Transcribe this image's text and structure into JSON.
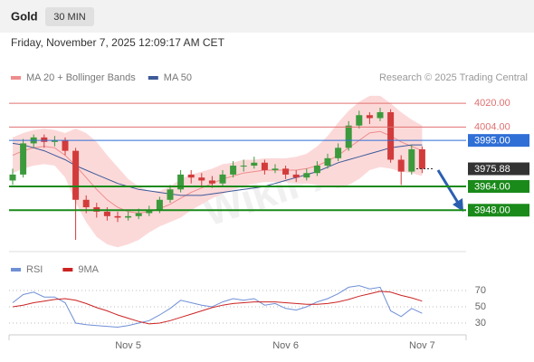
{
  "chart_data": {
    "type": "candlestick",
    "title": "Gold",
    "timeframe": "30 MIN",
    "subtitle": "Friday, November 7, 2025 12:09:17 AM CET",
    "source": "Research © 2025 Trading Central",
    "watermark": "WikiFX",
    "categories": [
      null,
      null,
      null,
      null,
      null,
      null,
      null,
      null,
      null,
      null,
      null,
      "Nov 5",
      null,
      null,
      null,
      null,
      null,
      null,
      null,
      null,
      null,
      null,
      null,
      null,
      null,
      null,
      "Nov 6",
      null,
      null,
      null,
      null,
      null,
      null,
      null,
      null,
      null,
      null,
      null,
      null,
      "Nov 7"
    ],
    "open": [
      3968,
      3972,
      3993,
      3997,
      3994,
      3995,
      3988,
      3955,
      3950,
      3947,
      3944,
      3943,
      3944,
      3946,
      3948,
      3955,
      3962,
      3972,
      3970,
      3968,
      3966,
      3972,
      3978,
      3978,
      3980,
      3975,
      3976,
      3972,
      3970,
      3973,
      3978,
      3983,
      3990,
      4005,
      4012,
      4010,
      4014,
      3982,
      3974,
      3989
    ],
    "high": [
      3976,
      3996,
      3999,
      3999,
      3998,
      3997,
      3990,
      3958,
      3953,
      3950,
      3947,
      3947,
      3949,
      3951,
      3957,
      3965,
      3975,
      3975,
      3973,
      3971,
      3975,
      3981,
      3982,
      3984,
      3982,
      3979,
      3978,
      3975,
      3976,
      3981,
      3986,
      3993,
      4008,
      4015,
      4014,
      4017,
      4016,
      3985,
      3992,
      3991
    ],
    "low": [
      3965,
      3970,
      3990,
      3990,
      3991,
      3985,
      3928,
      3946,
      3943,
      3941,
      3940,
      3941,
      3942,
      3944,
      3946,
      3953,
      3960,
      3966,
      3964,
      3963,
      3964,
      3970,
      3974,
      3976,
      3972,
      3973,
      3969,
      3967,
      3968,
      3971,
      3976,
      3981,
      3988,
      4003,
      4006,
      4008,
      3980,
      3965,
      3972,
      3973
    ],
    "close": [
      3972,
      3993,
      3997,
      3994,
      3995,
      3988,
      3955,
      3950,
      3947,
      3944,
      3943,
      3944,
      3946,
      3948,
      3955,
      3962,
      3972,
      3970,
      3968,
      3966,
      3972,
      3978,
      3978,
      3980,
      3975,
      3976,
      3972,
      3970,
      3973,
      3978,
      3983,
      3990,
      4005,
      4012,
      4010,
      4014,
      3982,
      3974,
      3989,
      3975.88
    ],
    "up_color": "#3c9a3c",
    "down_color": "#d23b3b",
    "ylim": [
      3925,
      4028
    ],
    "overlays": [
      {
        "name": "MA 20 + Bollinger Bands",
        "color": "#ee8c8c",
        "band_color": "#fcd9d9",
        "values": [
          3985,
          3988,
          3990,
          3991,
          3990,
          3985,
          3978,
          3970,
          3962,
          3955,
          3950,
          3947,
          3946,
          3947,
          3949,
          3952,
          3956,
          3960,
          3963,
          3966,
          3969,
          3971,
          3973,
          3974,
          3975,
          3975,
          3975,
          3975,
          3976,
          3978,
          3981,
          3985,
          3990,
          3995,
          4000,
          4001,
          3998,
          3994,
          3991,
          3988
        ],
        "upper": [
          3997,
          4000,
          4002,
          4003,
          4002,
          4000,
          4003,
          4000,
          3994,
          3985,
          3977,
          3969,
          3964,
          3961,
          3961,
          3964,
          3969,
          3972,
          3974,
          3976,
          3979,
          3980,
          3982,
          3982,
          3983,
          3983,
          3983,
          3984,
          3986,
          3991,
          3998,
          4007,
          4015,
          4021,
          4025,
          4025,
          4020,
          4014,
          4009,
          4005
        ],
        "lower": [
          3973,
          3976,
          3978,
          3979,
          3978,
          3970,
          3953,
          3940,
          3930,
          3925,
          3923,
          3925,
          3928,
          3933,
          3937,
          3940,
          3943,
          3948,
          3952,
          3956,
          3959,
          3962,
          3964,
          3966,
          3967,
          3967,
          3967,
          3966,
          3966,
          3965,
          3964,
          3963,
          3965,
          3969,
          3975,
          3977,
          3976,
          3974,
          3973,
          3971
        ]
      },
      {
        "name": "MA 50",
        "color": "#3d5a99",
        "values": [
          3993,
          3992,
          3990,
          3988,
          3985,
          3982,
          3978,
          3975,
          3972,
          3969,
          3966,
          3964,
          3962,
          3961,
          3960,
          3959,
          3958,
          3958,
          3958,
          3959,
          3960,
          3961,
          3962,
          3963,
          3964,
          3966,
          3968,
          3970,
          3972,
          3974,
          3977,
          3980,
          3982,
          3984,
          3986,
          3988,
          3990,
          3991,
          3992,
          3992
        ]
      }
    ],
    "levels": [
      {
        "price": {
          "value": 4020,
          "label": "4020.00"
        },
        "color": "#e07070",
        "style": "text",
        "line": "thin"
      },
      {
        "price": {
          "value": 4004,
          "label": "4004.00"
        },
        "color": "#e07070",
        "style": "text",
        "line": "thin"
      },
      {
        "price": {
          "value": 3995,
          "label": "3995.00"
        },
        "color": "#2f6fd6",
        "style": "box",
        "line": "thin"
      },
      {
        "price": 3975.88,
        "color": "#333333",
        "style": "box",
        "line": "dashed"
      },
      {
        "price": {
          "value": 3964,
          "label": "3964.00"
        },
        "color": "#1a8a1a",
        "style": "box",
        "line": "thick"
      },
      {
        "price": {
          "value": 3948,
          "label": "3948.00"
        },
        "color": "#1a8a1a",
        "style": "box",
        "line": "thick"
      }
    ],
    "rsi": {
      "ylim": [
        20,
        80
      ],
      "yticks": [
        30,
        50,
        70
      ],
      "grid": true,
      "series": [
        {
          "name": "RSI",
          "color": "#6f8fd6",
          "values": [
            55,
            65,
            68,
            62,
            62,
            55,
            30,
            28,
            27,
            26,
            25,
            27,
            30,
            33,
            40,
            48,
            58,
            55,
            52,
            50,
            56,
            60,
            58,
            60,
            52,
            54,
            48,
            46,
            50,
            56,
            60,
            66,
            74,
            76,
            72,
            74,
            45,
            38,
            48,
            42
          ]
        },
        {
          "name": "9MA",
          "color": "#cc2222",
          "values": [
            50,
            52,
            55,
            57,
            59,
            60,
            58,
            54,
            49,
            45,
            40,
            36,
            32,
            29,
            30,
            33,
            37,
            41,
            45,
            49,
            52,
            54,
            55,
            56,
            56,
            56,
            55,
            54,
            53,
            53,
            54,
            56,
            59,
            63,
            66,
            69,
            68,
            64,
            61,
            57
          ]
        }
      ]
    }
  }
}
